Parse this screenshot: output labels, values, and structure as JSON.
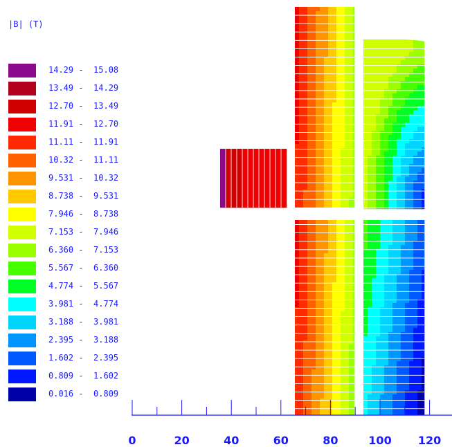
{
  "legend": {
    "title": "|B| (T)",
    "entries": [
      {
        "lo": "14.29",
        "hi": "15.08",
        "color": "#8b0a8b"
      },
      {
        "lo": "13.49",
        "hi": "14.29",
        "color": "#b0001e"
      },
      {
        "lo": "12.70",
        "hi": "13.49",
        "color": "#d10000"
      },
      {
        "lo": "11.91",
        "hi": "12.70",
        "color": "#f00000"
      },
      {
        "lo": "11.11",
        "hi": "11.91",
        "color": "#ff2a00"
      },
      {
        "lo": "10.32",
        "hi": "11.11",
        "color": "#ff6000"
      },
      {
        "lo": "9.531",
        "hi": "10.32",
        "color": "#ff9400"
      },
      {
        "lo": "8.738",
        "hi": "9.531",
        "color": "#ffc800"
      },
      {
        "lo": "7.946",
        "hi": "8.738",
        "color": "#ffff00"
      },
      {
        "lo": "7.153",
        "hi": "7.946",
        "color": "#d0ff00"
      },
      {
        "lo": "6.360",
        "hi": "7.153",
        "color": "#9cff00"
      },
      {
        "lo": "5.567",
        "hi": "6.360",
        "color": "#48ff00"
      },
      {
        "lo": "4.774",
        "hi": "5.567",
        "color": "#00ff24"
      },
      {
        "lo": "3.981",
        "hi": "4.774",
        "color": "#00ffff"
      },
      {
        "lo": "3.188",
        "hi": "3.981",
        "color": "#00d4ff"
      },
      {
        "lo": "2.395",
        "hi": "3.188",
        "color": "#0096ff"
      },
      {
        "lo": "1.602",
        "hi": "2.395",
        "color": "#0058ff"
      },
      {
        "lo": "0.809",
        "hi": "1.602",
        "color": "#0018ff"
      },
      {
        "lo": "0.016",
        "hi": "0.809",
        "color": "#0000a8"
      }
    ]
  },
  "axis": {
    "ticks": [
      "0",
      "20",
      "40",
      "60",
      "80",
      "100",
      "120"
    ]
  }
}
